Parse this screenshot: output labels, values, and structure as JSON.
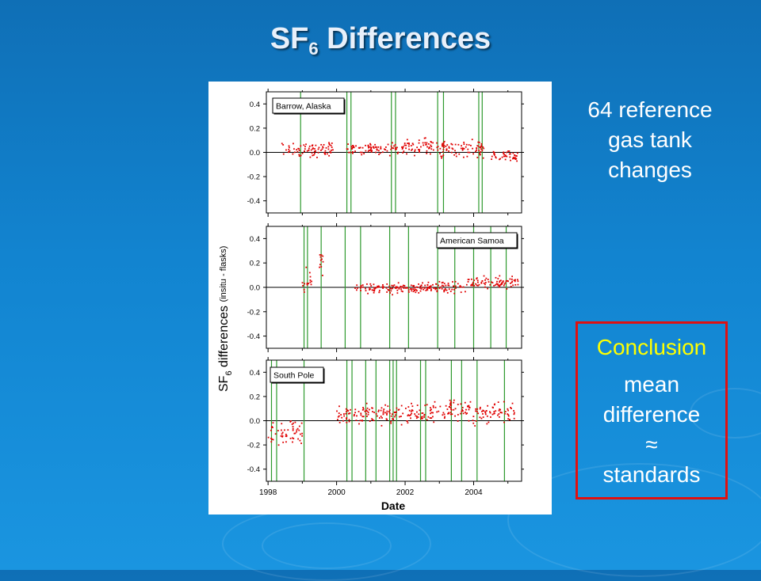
{
  "slide": {
    "title_main": "SF",
    "title_sub": "6",
    "title_rest": " Differences",
    "note_lines": [
      "64 reference",
      "gas tank",
      "changes"
    ],
    "conclusion": {
      "heading": "Conclusion",
      "lines": [
        "mean",
        "difference",
        "≈",
        "standards"
      ]
    },
    "colors": {
      "background": "#1284d0",
      "conclusion_border": "#e01010",
      "conclusion_heading": "#ffff00",
      "points": "#e00000",
      "tank_change_lines": "#2e9a2e"
    }
  },
  "chart_data": {
    "type": "scatter",
    "xlabel": "Date",
    "ylabel_main": "SF",
    "ylabel_sub": "6",
    "ylabel_rest": " differences",
    "ylabel_paren": "(insitu - flasks)",
    "x_ticks": [
      "1998",
      "2000",
      "2002",
      "2004"
    ],
    "x_tick_values": [
      1998,
      2000,
      2002,
      2004
    ],
    "xlim": [
      1997.95,
      2005.4
    ],
    "panels": [
      {
        "name": "Barrow, Alaska",
        "legend_position": "top-left",
        "ylim": [
          -0.5,
          0.5
        ],
        "y_ticks": [
          "0.4",
          "0.2",
          "0.0",
          "-0.2",
          "-0.4"
        ],
        "y_tick_values": [
          0.4,
          0.2,
          0.0,
          -0.2,
          -0.4
        ],
        "tank_changes": [
          1998.95,
          2000.3,
          2000.42,
          2001.6,
          2001.72,
          2002.95,
          2003.12,
          2004.15,
          2004.25
        ],
        "clusters": [
          [
            1998.4,
            1999.9,
            0.02,
            0.06
          ],
          [
            2000.3,
            2001.8,
            0.03,
            0.05
          ],
          [
            2001.9,
            2003.2,
            0.05,
            0.06
          ],
          [
            2003.0,
            2004.3,
            0.02,
            0.07
          ],
          [
            2004.5,
            2005.3,
            -0.03,
            0.05
          ]
        ]
      },
      {
        "name": "American Samoa",
        "legend_position": "top-right",
        "ylim": [
          -0.5,
          0.5
        ],
        "y_ticks": [
          "0.4",
          "0.2",
          "0.0",
          "-0.2",
          "-0.4"
        ],
        "y_tick_values": [
          0.4,
          0.2,
          0.0,
          -0.2,
          -0.4
        ],
        "tank_changes": [
          1999.05,
          1999.15,
          1999.55,
          2000.25,
          2000.7,
          2001.55,
          2002.1,
          2002.95,
          2003.45,
          2004.0,
          2004.5,
          2004.95
        ],
        "clusters": [
          [
            1999.0,
            1999.3,
            0.05,
            0.12
          ],
          [
            1999.5,
            1999.7,
            0.2,
            0.12
          ],
          [
            2000.5,
            2002.5,
            -0.01,
            0.04
          ],
          [
            2002.5,
            2003.8,
            0.0,
            0.04
          ],
          [
            2003.8,
            2005.3,
            0.04,
            0.05
          ]
        ]
      },
      {
        "name": "South Pole",
        "legend_position": "top-left",
        "ylim": [
          -0.5,
          0.5
        ],
        "y_ticks": [
          "0.4",
          "0.2",
          "0.0",
          "-0.2",
          "-0.4"
        ],
        "y_tick_values": [
          0.4,
          0.2,
          0.0,
          -0.2,
          -0.4
        ],
        "tank_changes": [
          1998.1,
          1998.25,
          1999.05,
          2000.3,
          2000.45,
          2000.85,
          2001.15,
          2001.55,
          2001.65,
          2001.75,
          2002.45,
          2002.6,
          2003.35,
          2003.65,
          2004.1,
          2004.9
        ],
        "clusters": [
          [
            1998.0,
            1999.0,
            -0.1,
            0.1
          ],
          [
            2000.0,
            2000.8,
            0.05,
            0.06
          ],
          [
            2000.8,
            2002.5,
            0.05,
            0.08
          ],
          [
            2002.5,
            2004.0,
            0.08,
            0.09
          ],
          [
            2004.0,
            2005.2,
            0.07,
            0.08
          ]
        ]
      }
    ]
  }
}
